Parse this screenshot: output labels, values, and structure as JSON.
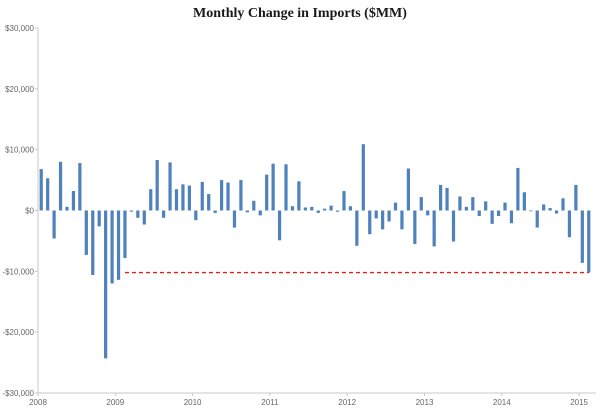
{
  "chart_data": {
    "type": "bar",
    "title": "Monthly Change in Imports ($MM)",
    "xlabel": "",
    "ylabel": "",
    "ylim": [
      -30000,
      30000
    ],
    "yticks": [
      30000,
      20000,
      10000,
      0,
      -10000,
      -20000,
      -30000
    ],
    "ytick_labels": [
      "$30,000",
      "$20,000",
      "$10,000",
      "$0",
      "-$10,000",
      "-$20,000",
      "-$30,000"
    ],
    "xtick_labels": [
      "2008",
      "2009",
      "2010",
      "2011",
      "2012",
      "2013",
      "2014",
      "2015"
    ],
    "x_start": "2008-01",
    "bar_color": "#4f81bd",
    "reference_line": {
      "value": -10200,
      "color": "#e0201b",
      "style": "dashed",
      "from": "2009-02",
      "to": "2015-02"
    },
    "values": [
      6800,
      5300,
      -4600,
      8000,
      600,
      3200,
      7800,
      -7300,
      -10600,
      -2600,
      -24300,
      -12000,
      -11400,
      -7800,
      -200,
      -1200,
      -2300,
      3500,
      8300,
      -1200,
      7900,
      3500,
      4300,
      4100,
      -1600,
      4700,
      2700,
      -400,
      5000,
      4600,
      -2800,
      5000,
      -300,
      1600,
      -800,
      5900,
      7700,
      -4900,
      7600,
      700,
      4800,
      500,
      600,
      -400,
      300,
      800,
      -200,
      3200,
      700,
      -5800,
      10900,
      -3900,
      -1300,
      -3100,
      -1800,
      1300,
      -3100,
      6900,
      -5500,
      2200,
      -800,
      -5900,
      4200,
      3700,
      -5100,
      2300,
      600,
      2200,
      -900,
      1500,
      -2200,
      -900,
      1300,
      -2100,
      7000,
      3000,
      0,
      -2800,
      1000,
      400,
      -500,
      2000,
      -4400,
      4200,
      -8600,
      -10200
    ]
  }
}
